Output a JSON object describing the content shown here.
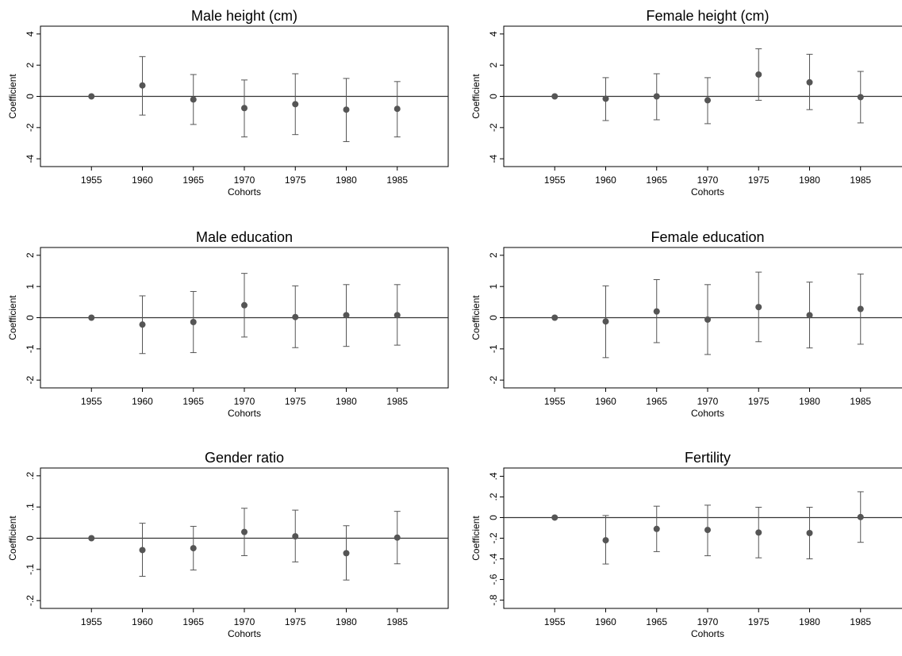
{
  "chart_data": [
    {
      "type": "scatter",
      "title": "Male height (cm)",
      "xlabel": "Cohorts",
      "ylabel": "Coefficient",
      "x": [
        1955,
        1960,
        1965,
        1970,
        1975,
        1980,
        1985
      ],
      "x_tick_labels": [
        "1955",
        "1960",
        "1965",
        "1970",
        "1975",
        "1980",
        "1985"
      ],
      "xlim": [
        1950,
        1990
      ],
      "ylim": [
        -4.5,
        4.5
      ],
      "y_ticks": [
        -4,
        -2,
        0,
        2,
        4
      ],
      "y_tick_labels": [
        "-4",
        "-2",
        "0",
        "2",
        "4"
      ],
      "series": [
        {
          "values": [
            0,
            0.7,
            -0.2,
            -0.75,
            -0.5,
            -0.85,
            -0.8
          ],
          "ci_low": [
            0,
            -1.2,
            -1.8,
            -2.6,
            -2.45,
            -2.9,
            -2.6
          ],
          "ci_high": [
            0,
            2.55,
            1.4,
            1.05,
            1.45,
            1.15,
            0.95
          ]
        }
      ],
      "reference_line_y": 0,
      "grid": false
    },
    {
      "type": "scatter",
      "title": "Female height (cm)",
      "xlabel": "Cohorts",
      "ylabel": "Coefficient",
      "x": [
        1955,
        1960,
        1965,
        1970,
        1975,
        1980,
        1985
      ],
      "x_tick_labels": [
        "1955",
        "1960",
        "1965",
        "1970",
        "1975",
        "1980",
        "1985"
      ],
      "xlim": [
        1950,
        1990
      ],
      "ylim": [
        -4.5,
        4.5
      ],
      "y_ticks": [
        -4,
        -2,
        0,
        2,
        4
      ],
      "y_tick_labels": [
        "-4",
        "-2",
        "0",
        "2",
        "4"
      ],
      "series": [
        {
          "values": [
            0,
            -0.15,
            0,
            -0.25,
            1.4,
            0.9,
            -0.05
          ],
          "ci_low": [
            0,
            -1.55,
            -1.5,
            -1.75,
            -0.25,
            -0.85,
            -1.7
          ],
          "ci_high": [
            0,
            1.2,
            1.45,
            1.2,
            3.05,
            2.7,
            1.6
          ]
        }
      ],
      "reference_line_y": 0,
      "grid": false
    },
    {
      "type": "scatter",
      "title": "Male education",
      "xlabel": "Cohorts",
      "ylabel": "Coefficient",
      "x": [
        1955,
        1960,
        1965,
        1970,
        1975,
        1980,
        1985
      ],
      "x_tick_labels": [
        "1955",
        "1960",
        "1965",
        "1970",
        "1975",
        "1980",
        "1985"
      ],
      "xlim": [
        1950,
        1990
      ],
      "ylim": [
        -2.25,
        2.25
      ],
      "y_ticks": [
        -2,
        -1,
        0,
        1,
        2
      ],
      "y_tick_labels": [
        "-2",
        "-1",
        "0",
        "1",
        "2"
      ],
      "series": [
        {
          "values": [
            0,
            -0.22,
            -0.14,
            0.4,
            0.02,
            0.08,
            0.08
          ],
          "ci_low": [
            0,
            -1.15,
            -1.12,
            -0.62,
            -0.96,
            -0.92,
            -0.88
          ],
          "ci_high": [
            0,
            0.7,
            0.84,
            1.42,
            1.02,
            1.06,
            1.06
          ]
        }
      ],
      "reference_line_y": 0,
      "grid": false
    },
    {
      "type": "scatter",
      "title": "Female education",
      "xlabel": "Cohorts",
      "ylabel": "Coefficient",
      "x": [
        1955,
        1960,
        1965,
        1970,
        1975,
        1980,
        1985
      ],
      "x_tick_labels": [
        "1955",
        "1960",
        "1965",
        "1970",
        "1975",
        "1980",
        "1985"
      ],
      "xlim": [
        1950,
        1990
      ],
      "ylim": [
        -2.25,
        2.25
      ],
      "y_ticks": [
        -2,
        -1,
        0,
        1,
        2
      ],
      "y_tick_labels": [
        "-2",
        "-1",
        "0",
        "1",
        "2"
      ],
      "series": [
        {
          "values": [
            0,
            -0.12,
            0.2,
            -0.06,
            0.34,
            0.08,
            0.28
          ],
          "ci_low": [
            0,
            -1.28,
            -0.8,
            -1.18,
            -0.77,
            -0.97,
            -0.85
          ],
          "ci_high": [
            0,
            1.02,
            1.22,
            1.06,
            1.46,
            1.14,
            1.4
          ]
        }
      ],
      "reference_line_y": 0,
      "grid": false
    },
    {
      "type": "scatter",
      "title": "Gender ratio",
      "xlabel": "Cohorts",
      "ylabel": "Coefficient",
      "x": [
        1955,
        1960,
        1965,
        1970,
        1975,
        1980,
        1985
      ],
      "x_tick_labels": [
        "1955",
        "1960",
        "1965",
        "1970",
        "1975",
        "1980",
        "1985"
      ],
      "xlim": [
        1950,
        1990
      ],
      "ylim": [
        -0.225,
        0.225
      ],
      "y_ticks": [
        -0.2,
        -0.1,
        0,
        0.1,
        0.2
      ],
      "y_tick_labels": [
        "-.2",
        "-.1",
        "0",
        ".1",
        ".2"
      ],
      "series": [
        {
          "values": [
            0,
            -0.038,
            -0.032,
            0.02,
            0.006,
            -0.048,
            0.002
          ],
          "ci_low": [
            0,
            -0.122,
            -0.102,
            -0.056,
            -0.076,
            -0.134,
            -0.082
          ],
          "ci_high": [
            0,
            0.048,
            0.038,
            0.096,
            0.09,
            0.04,
            0.086
          ]
        }
      ],
      "reference_line_y": 0,
      "grid": false
    },
    {
      "type": "scatter",
      "title": "Fertility",
      "xlabel": "Cohorts",
      "ylabel": "Coefficient",
      "x": [
        1955,
        1960,
        1965,
        1970,
        1975,
        1980,
        1985
      ],
      "x_tick_labels": [
        "1955",
        "1960",
        "1965",
        "1970",
        "1975",
        "1980",
        "1985"
      ],
      "xlim": [
        1950,
        1990
      ],
      "ylim": [
        -0.88,
        0.48
      ],
      "y_ticks": [
        -0.8,
        -0.6,
        -0.4,
        -0.2,
        0,
        0.2,
        0.4
      ],
      "y_tick_labels": [
        "-.8",
        "-.6",
        "-.4",
        "-.2",
        "0",
        ".2",
        ".4"
      ],
      "series": [
        {
          "values": [
            0,
            -0.22,
            -0.11,
            -0.12,
            -0.145,
            -0.15,
            0.005
          ],
          "ci_low": [
            0,
            -0.45,
            -0.33,
            -0.37,
            -0.39,
            -0.4,
            -0.24
          ],
          "ci_high": [
            0,
            0.02,
            0.11,
            0.12,
            0.1,
            0.1,
            0.25
          ]
        }
      ],
      "reference_line_y": 0,
      "grid": false
    }
  ],
  "style": {
    "marker_color": "#555555",
    "ci_color": "#555555",
    "axis_color": "#000000",
    "zero_line_color": "#333333"
  }
}
